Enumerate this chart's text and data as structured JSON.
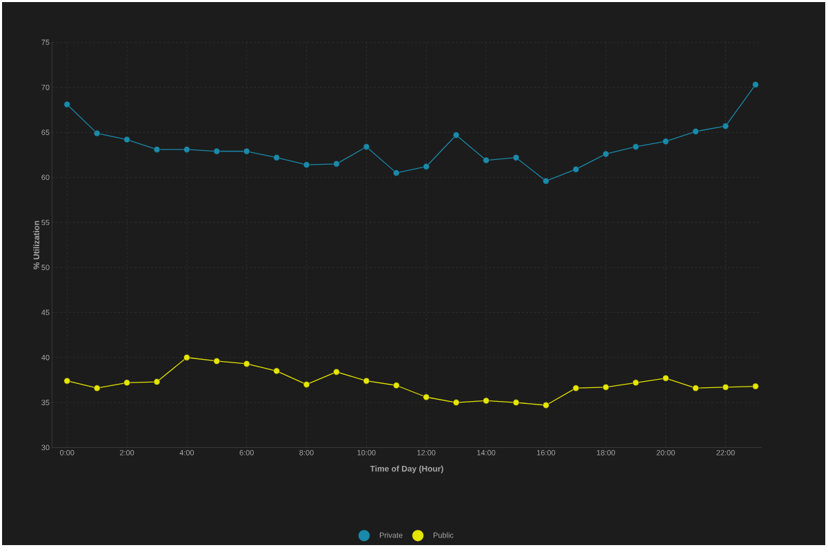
{
  "chart_data": {
    "type": "line",
    "xlabel": "Time of Day (Hour)",
    "ylabel": "% Utilization",
    "x": [
      0,
      1,
      2,
      3,
      4,
      5,
      6,
      7,
      8,
      9,
      10,
      11,
      12,
      13,
      14,
      15,
      16,
      17,
      18,
      19,
      20,
      21,
      22,
      23
    ],
    "series": [
      {
        "name": "Private",
        "color": "#1a8aab",
        "values": [
          68.1,
          64.9,
          64.2,
          63.1,
          63.1,
          62.9,
          62.9,
          62.2,
          61.4,
          61.5,
          63.4,
          60.5,
          61.2,
          64.7,
          61.9,
          62.2,
          59.6,
          60.9,
          62.6,
          63.4,
          64.0,
          65.1,
          65.7,
          70.3
        ]
      },
      {
        "name": "Public",
        "color": "#e6e600",
        "values": [
          37.4,
          36.6,
          37.2,
          37.3,
          40.0,
          39.6,
          39.3,
          38.5,
          37.0,
          38.4,
          37.4,
          36.9,
          35.6,
          35.0,
          35.2,
          35.0,
          34.7,
          36.6,
          36.7,
          37.2,
          37.7,
          36.6,
          36.7,
          36.8
        ]
      }
    ],
    "xlim": [
      -0.5,
      23.2
    ],
    "ylim": [
      30,
      75
    ],
    "xticks": [
      {
        "value": 0,
        "label": "0:00"
      },
      {
        "value": 2,
        "label": "2:00"
      },
      {
        "value": 4,
        "label": "4:00"
      },
      {
        "value": 6,
        "label": "6:00"
      },
      {
        "value": 8,
        "label": "8:00"
      },
      {
        "value": 10,
        "label": "10:00"
      },
      {
        "value": 12,
        "label": "12:00"
      },
      {
        "value": 14,
        "label": "14:00"
      },
      {
        "value": 16,
        "label": "16:00"
      },
      {
        "value": 18,
        "label": "18:00"
      },
      {
        "value": 20,
        "label": "20:00"
      },
      {
        "value": 22,
        "label": "22:00"
      }
    ],
    "yticks": [
      30,
      35,
      40,
      45,
      50,
      55,
      60,
      65,
      70,
      75
    ],
    "grid": true,
    "legend": "bottom",
    "marker": "circle",
    "line_style": "solid"
  }
}
